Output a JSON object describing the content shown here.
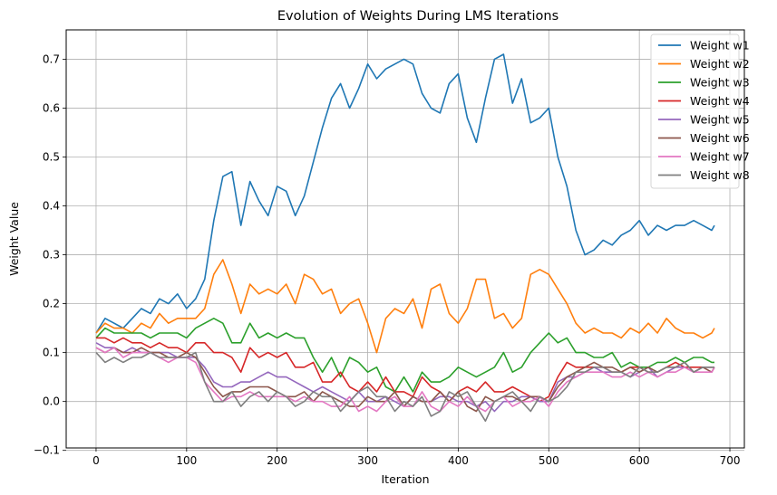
{
  "chart_data": {
    "type": "line",
    "title": "Evolution of Weights During LMS Iterations",
    "xlabel": "Iteration",
    "ylabel": "Weight Value",
    "xlim": [
      -33,
      716
    ],
    "ylim": [
      -0.095,
      0.76
    ],
    "xticks": [
      0,
      100,
      200,
      300,
      400,
      500,
      600,
      700
    ],
    "yticks": [
      -0.1,
      0.0,
      0.1,
      0.2,
      0.3,
      0.4,
      0.5,
      0.6,
      0.7
    ],
    "grid": true,
    "legend_position": "top-right",
    "x": [
      0,
      10,
      20,
      30,
      40,
      50,
      60,
      70,
      80,
      90,
      100,
      110,
      120,
      130,
      140,
      150,
      160,
      170,
      180,
      190,
      200,
      210,
      220,
      230,
      240,
      250,
      260,
      270,
      280,
      290,
      300,
      310,
      320,
      330,
      340,
      350,
      360,
      370,
      380,
      390,
      400,
      410,
      420,
      430,
      440,
      450,
      460,
      470,
      480,
      490,
      500,
      510,
      520,
      530,
      540,
      550,
      560,
      570,
      580,
      590,
      600,
      610,
      620,
      630,
      640,
      650,
      660,
      670,
      680,
      683
    ],
    "series": [
      {
        "name": "Weight w1",
        "color": "#1f77b4",
        "values": [
          0.14,
          0.17,
          0.16,
          0.15,
          0.17,
          0.19,
          0.18,
          0.21,
          0.2,
          0.22,
          0.19,
          0.21,
          0.25,
          0.37,
          0.46,
          0.47,
          0.36,
          0.45,
          0.41,
          0.38,
          0.44,
          0.43,
          0.38,
          0.42,
          0.49,
          0.56,
          0.62,
          0.65,
          0.6,
          0.64,
          0.69,
          0.66,
          0.68,
          0.69,
          0.7,
          0.69,
          0.63,
          0.6,
          0.59,
          0.65,
          0.67,
          0.58,
          0.53,
          0.62,
          0.7,
          0.71,
          0.61,
          0.66,
          0.57,
          0.58,
          0.6,
          0.5,
          0.44,
          0.35,
          0.3,
          0.31,
          0.33,
          0.32,
          0.34,
          0.35,
          0.37,
          0.34,
          0.36,
          0.35,
          0.36,
          0.36,
          0.37,
          0.36,
          0.35,
          0.36
        ]
      },
      {
        "name": "Weight w2",
        "color": "#ff7f0e",
        "values": [
          0.14,
          0.16,
          0.15,
          0.15,
          0.14,
          0.16,
          0.15,
          0.18,
          0.16,
          0.17,
          0.17,
          0.17,
          0.19,
          0.26,
          0.29,
          0.24,
          0.18,
          0.24,
          0.22,
          0.23,
          0.22,
          0.24,
          0.2,
          0.26,
          0.25,
          0.22,
          0.23,
          0.18,
          0.2,
          0.21,
          0.16,
          0.1,
          0.17,
          0.19,
          0.18,
          0.21,
          0.15,
          0.23,
          0.24,
          0.18,
          0.16,
          0.19,
          0.25,
          0.25,
          0.17,
          0.18,
          0.15,
          0.17,
          0.26,
          0.27,
          0.26,
          0.23,
          0.2,
          0.16,
          0.14,
          0.15,
          0.14,
          0.14,
          0.13,
          0.15,
          0.14,
          0.16,
          0.14,
          0.17,
          0.15,
          0.14,
          0.14,
          0.13,
          0.14,
          0.15
        ]
      },
      {
        "name": "Weight w3",
        "color": "#2ca02c",
        "values": [
          0.13,
          0.15,
          0.14,
          0.14,
          0.14,
          0.14,
          0.13,
          0.14,
          0.14,
          0.14,
          0.13,
          0.15,
          0.16,
          0.17,
          0.16,
          0.12,
          0.12,
          0.16,
          0.13,
          0.14,
          0.13,
          0.14,
          0.13,
          0.13,
          0.09,
          0.06,
          0.09,
          0.05,
          0.09,
          0.08,
          0.06,
          0.07,
          0.03,
          0.02,
          0.05,
          0.02,
          0.06,
          0.04,
          0.04,
          0.05,
          0.07,
          0.06,
          0.05,
          0.06,
          0.07,
          0.1,
          0.06,
          0.07,
          0.1,
          0.12,
          0.14,
          0.12,
          0.13,
          0.1,
          0.1,
          0.09,
          0.09,
          0.1,
          0.07,
          0.08,
          0.07,
          0.07,
          0.08,
          0.08,
          0.09,
          0.08,
          0.09,
          0.09,
          0.08,
          0.08
        ]
      },
      {
        "name": "Weight w4",
        "color": "#d62728",
        "values": [
          0.13,
          0.13,
          0.12,
          0.13,
          0.12,
          0.12,
          0.11,
          0.12,
          0.11,
          0.11,
          0.1,
          0.12,
          0.12,
          0.1,
          0.1,
          0.09,
          0.06,
          0.11,
          0.09,
          0.1,
          0.09,
          0.1,
          0.07,
          0.07,
          0.08,
          0.04,
          0.04,
          0.06,
          0.03,
          0.02,
          0.04,
          0.02,
          0.05,
          0.02,
          0.02,
          0.01,
          0.05,
          0.03,
          0.02,
          0.0,
          0.02,
          0.03,
          0.02,
          0.04,
          0.02,
          0.02,
          0.03,
          0.02,
          0.01,
          0.0,
          0.01,
          0.05,
          0.08,
          0.07,
          0.07,
          0.07,
          0.07,
          0.06,
          0.06,
          0.07,
          0.07,
          0.06,
          0.06,
          0.07,
          0.08,
          0.07,
          0.07,
          0.07,
          0.07,
          0.07
        ]
      },
      {
        "name": "Weight w5",
        "color": "#9467bd",
        "values": [
          0.12,
          0.11,
          0.11,
          0.1,
          0.11,
          0.1,
          0.1,
          0.1,
          0.1,
          0.09,
          0.09,
          0.09,
          0.07,
          0.04,
          0.03,
          0.03,
          0.04,
          0.04,
          0.05,
          0.06,
          0.05,
          0.05,
          0.04,
          0.03,
          0.02,
          0.03,
          0.02,
          0.01,
          0.0,
          0.02,
          0.0,
          0.0,
          0.01,
          0.0,
          -0.01,
          0.01,
          0.0,
          0.0,
          0.01,
          0.01,
          0.0,
          0.0,
          -0.01,
          0.0,
          -0.02,
          0.0,
          0.0,
          0.01,
          0.01,
          0.0,
          0.0,
          0.04,
          0.05,
          0.05,
          0.06,
          0.07,
          0.06,
          0.06,
          0.06,
          0.05,
          0.06,
          0.07,
          0.05,
          0.06,
          0.07,
          0.07,
          0.06,
          0.07,
          0.07,
          0.07
        ]
      },
      {
        "name": "Weight w6",
        "color": "#8c564b",
        "values": [
          0.11,
          0.1,
          0.11,
          0.1,
          0.1,
          0.11,
          0.1,
          0.1,
          0.09,
          0.09,
          0.1,
          0.09,
          0.06,
          0.03,
          0.01,
          0.02,
          0.02,
          0.03,
          0.03,
          0.03,
          0.02,
          0.01,
          0.01,
          0.02,
          0.0,
          0.02,
          0.01,
          0.0,
          -0.01,
          -0.01,
          0.01,
          0.0,
          0.0,
          0.02,
          -0.01,
          0.01,
          0.0,
          0.0,
          0.02,
          0.0,
          0.02,
          -0.01,
          -0.02,
          0.01,
          0.0,
          0.01,
          0.01,
          0.0,
          0.01,
          0.01,
          0.0,
          0.03,
          0.05,
          0.06,
          0.07,
          0.08,
          0.07,
          0.07,
          0.06,
          0.07,
          0.06,
          0.07,
          0.06,
          0.07,
          0.07,
          0.08,
          0.06,
          0.07,
          0.06,
          0.07
        ]
      },
      {
        "name": "Weight w7",
        "color": "#e377c2",
        "values": [
          0.11,
          0.1,
          0.11,
          0.09,
          0.1,
          0.1,
          0.1,
          0.09,
          0.08,
          0.09,
          0.09,
          0.08,
          0.04,
          0.02,
          0.0,
          0.01,
          0.01,
          0.02,
          0.01,
          0.01,
          0.01,
          0.01,
          0.0,
          0.01,
          0.0,
          0.0,
          -0.01,
          -0.01,
          0.01,
          -0.02,
          -0.01,
          -0.02,
          0.0,
          0.01,
          -0.01,
          -0.01,
          0.02,
          -0.01,
          -0.02,
          0.0,
          -0.01,
          0.01,
          -0.01,
          -0.02,
          0.0,
          0.01,
          -0.01,
          0.0,
          0.0,
          0.01,
          -0.01,
          0.02,
          0.04,
          0.05,
          0.06,
          0.06,
          0.06,
          0.05,
          0.05,
          0.06,
          0.05,
          0.06,
          0.05,
          0.06,
          0.06,
          0.07,
          0.06,
          0.06,
          0.06,
          0.07
        ]
      },
      {
        "name": "Weight w8",
        "color": "#7f7f7f",
        "values": [
          0.1,
          0.08,
          0.09,
          0.08,
          0.09,
          0.09,
          0.1,
          0.09,
          0.09,
          0.09,
          0.09,
          0.1,
          0.04,
          0.0,
          0.0,
          0.02,
          -0.01,
          0.01,
          0.02,
          0.0,
          0.02,
          0.01,
          -0.01,
          0.0,
          0.02,
          0.01,
          0.01,
          -0.02,
          0.0,
          0.02,
          0.03,
          0.01,
          0.01,
          -0.02,
          0.0,
          -0.01,
          0.01,
          -0.03,
          -0.02,
          0.02,
          0.01,
          0.02,
          -0.01,
          -0.04,
          0.0,
          0.01,
          0.02,
          0.0,
          -0.02,
          0.01,
          0.0,
          0.01,
          0.03,
          0.06,
          0.06,
          0.07,
          0.07,
          0.06,
          0.06,
          0.05,
          0.07,
          0.06,
          0.06,
          0.07,
          0.07,
          0.08,
          0.06,
          0.07,
          0.07,
          0.07
        ]
      }
    ]
  }
}
